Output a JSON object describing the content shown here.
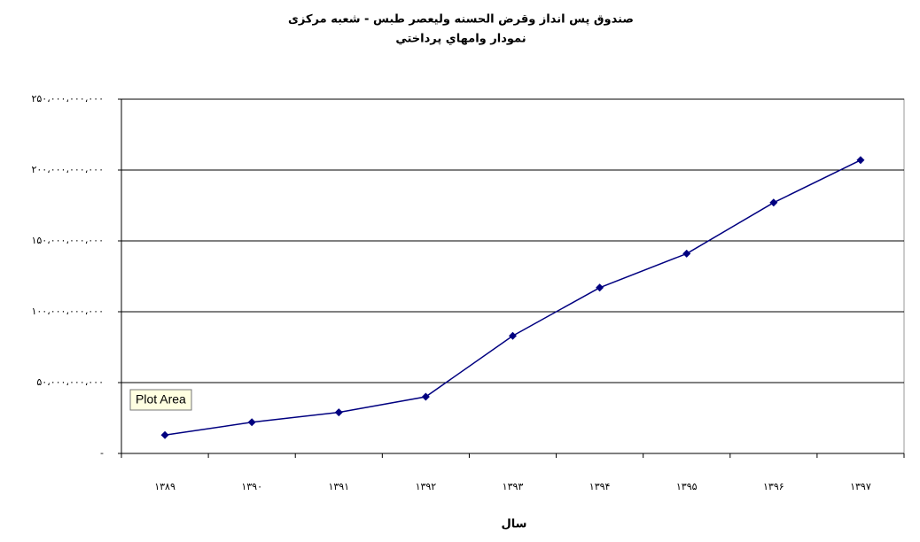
{
  "chart_data": {
    "type": "line",
    "title": "صندوق پس انداز وقرض الحسنه وليعصر طبس - شعبه مرکزی",
    "subtitle": "نمودار وامهاي  پرداختي",
    "x_label": "سال",
    "tooltip": "Plot Area",
    "categories": [
      "۱۳۸۹",
      "۱۳۹۰",
      "۱۳۹۱",
      "۱۳۹۲",
      "۱۳۹۳",
      "۱۳۹۴",
      "۱۳۹۵",
      "۱۳۹۶",
      "۱۳۹۷"
    ],
    "values": [
      13000000000,
      22000000000,
      29000000000,
      40000000000,
      83000000000,
      117000000000,
      141000000000,
      177000000000,
      207000000000
    ],
    "color": "#000080",
    "ylim": [
      0,
      250000000000
    ],
    "yticks": [
      {
        "value": 0,
        "label": "-"
      },
      {
        "value": 50000000000,
        "label": "۵۰،۰۰۰،۰۰۰،۰۰۰"
      },
      {
        "value": 100000000000,
        "label": "۱۰۰،۰۰۰،۰۰۰،۰۰۰"
      },
      {
        "value": 150000000000,
        "label": "۱۵۰،۰۰۰،۰۰۰،۰۰۰"
      },
      {
        "value": 200000000000,
        "label": "۲۰۰،۰۰۰،۰۰۰،۰۰۰"
      },
      {
        "value": 250000000000,
        "label": "۲۵۰،۰۰۰،۰۰۰،۰۰۰"
      }
    ],
    "grid": true
  }
}
